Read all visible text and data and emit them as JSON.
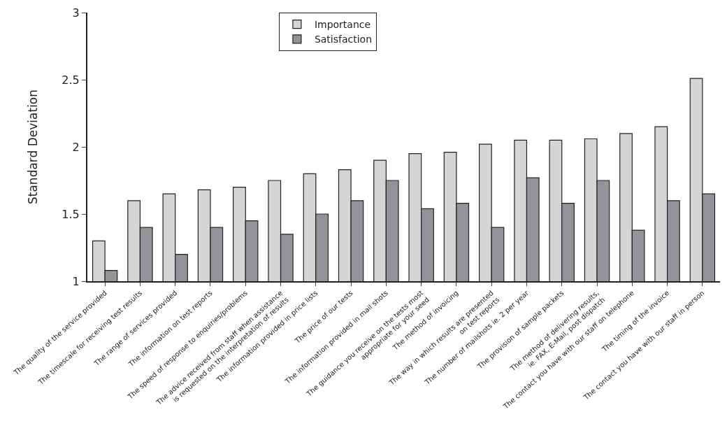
{
  "chart_data": {
    "type": "bar",
    "ylabel": "Standard Deviation",
    "categories": [
      "The quality of the service provided",
      "The timescale for receiving test results",
      "The range of services provided",
      "The information on test reports",
      "The speed of response to enquiries/problems",
      "The advice received from staff when assistance\nis requested on the interpretation of results",
      "The information provided in price lists",
      "The price of our tests",
      "The information provided in mail shots",
      "The guidance you receive on the tests most\nappropriate for your seed",
      "The method of invoicing",
      "The way in which results are presented\non test reports",
      "The number of mailshots ie. 2 per year",
      "The provision of sample packets",
      "The method of delivering results,\nie. FAX, E-Mail, post dispatch",
      "The contact you have with our staff on telephone",
      "The timing of the invoice",
      "The contact you have with our staff in person"
    ],
    "series": [
      {
        "name": "Importance",
        "color": "#d4d5d7",
        "values": [
          1.3,
          1.6,
          1.65,
          1.68,
          1.7,
          1.75,
          1.8,
          1.83,
          1.9,
          1.95,
          1.96,
          2.02,
          2.05,
          2.05,
          2.06,
          2.1,
          2.15,
          2.51
        ]
      },
      {
        "name": "Satisfaction",
        "color": "#939498",
        "values": [
          1.08,
          1.4,
          1.2,
          1.4,
          1.45,
          1.35,
          1.5,
          1.6,
          1.75,
          1.54,
          1.58,
          1.4,
          1.77,
          1.58,
          1.75,
          1.38,
          1.6,
          1.65
        ]
      }
    ],
    "ylim": [
      1,
      3
    ],
    "yticks": [
      1,
      1.5,
      2,
      2.5,
      3
    ],
    "grid": false,
    "legend": "top"
  }
}
